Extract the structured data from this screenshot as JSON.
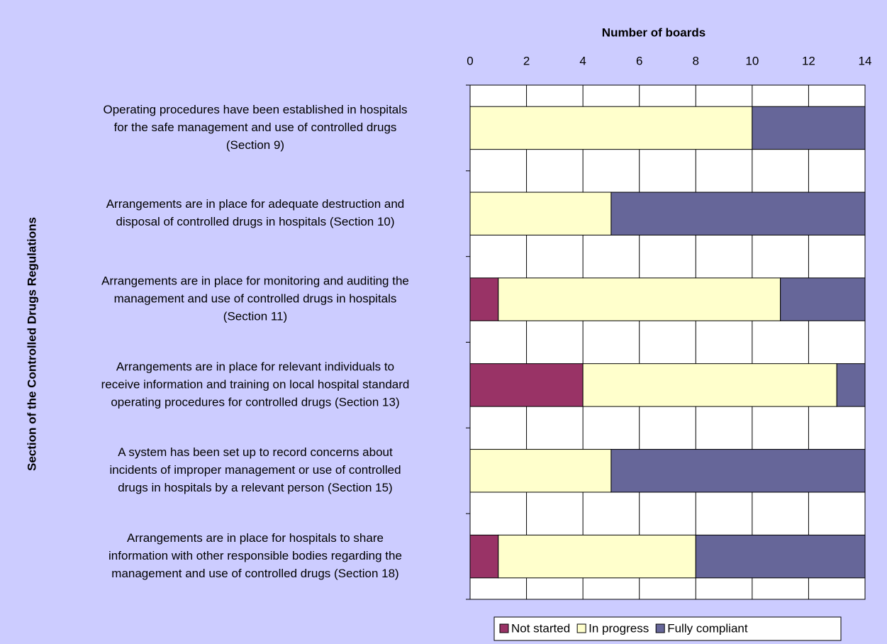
{
  "chart_data": {
    "type": "stacked-barh",
    "x_label": "Number of boards",
    "y_label": "Section of the Controlled Drugs Regulations",
    "categories": [
      [
        "Operating procedures have been established in hospitals",
        "for the safe management and use of controlled drugs",
        "(Section 9)"
      ],
      [
        "Arrangements are in place for adequate destruction and",
        "disposal of controlled drugs in hospitals (Section 10)"
      ],
      [
        "Arrangements are in place for monitoring and auditing the",
        "management and use of controlled drugs in hospitals",
        "(Section 11)"
      ],
      [
        "Arrangements are in place for relevant individuals to",
        "receive information and training on local hospital standard",
        "operating procedures for controlled drugs (Section 13)"
      ],
      [
        "A system has been set up to record concerns about",
        "incidents of improper management or use of controlled",
        "drugs in hospitals by a relevant person (Section 15)"
      ],
      [
        "Arrangements are in place for hospitals to share",
        "information with other responsible bodies regarding the",
        "management and use of controlled drugs (Section 18)"
      ]
    ],
    "series": [
      {
        "name": "Not started",
        "color": "#993366",
        "values": [
          0,
          0,
          1,
          4,
          0,
          1
        ]
      },
      {
        "name": "In progress",
        "color": "#ffffcc",
        "values": [
          10,
          5,
          10,
          9,
          5,
          7
        ]
      },
      {
        "name": "Fully compliant",
        "color": "#666699",
        "values": [
          4,
          9,
          3,
          1,
          9,
          6
        ]
      }
    ],
    "xlim": [
      0,
      14
    ],
    "xticks": [
      0,
      2,
      4,
      6,
      8,
      10,
      12,
      14
    ],
    "grid": true,
    "legend": "bottom"
  }
}
